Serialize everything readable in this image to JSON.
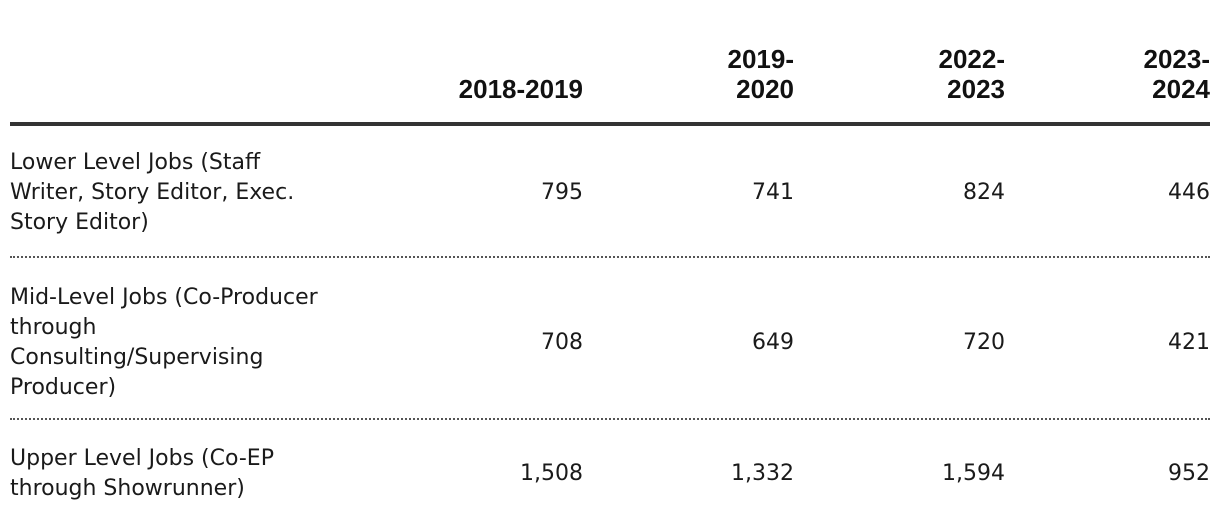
{
  "table": {
    "columns": [
      "2018-2019",
      "2019-\n2020",
      "2022-\n2023",
      "2023-\n2024"
    ],
    "column_lines": [
      [
        "2018-2019"
      ],
      [
        "2019-",
        "2020"
      ],
      [
        "2022-",
        "2023"
      ],
      [
        "2023-",
        "2024"
      ]
    ],
    "rows": [
      {
        "label_lines": [
          "Lower Level Jobs (Staff",
          "Writer, Story Editor, Exec.",
          "Story Editor)"
        ],
        "values": [
          "795",
          "741",
          "824",
          "446"
        ]
      },
      {
        "label_lines": [
          "Mid-Level Jobs (Co-Producer",
          "through",
          "Consulting/Supervising",
          "Producer)"
        ],
        "values": [
          "708",
          "649",
          "720",
          "421"
        ]
      },
      {
        "label_lines": [
          "Upper Level Jobs (Co-EP",
          "through Showrunner)"
        ],
        "values": [
          "1,508",
          "1,332",
          "1,594",
          "952"
        ]
      }
    ]
  }
}
